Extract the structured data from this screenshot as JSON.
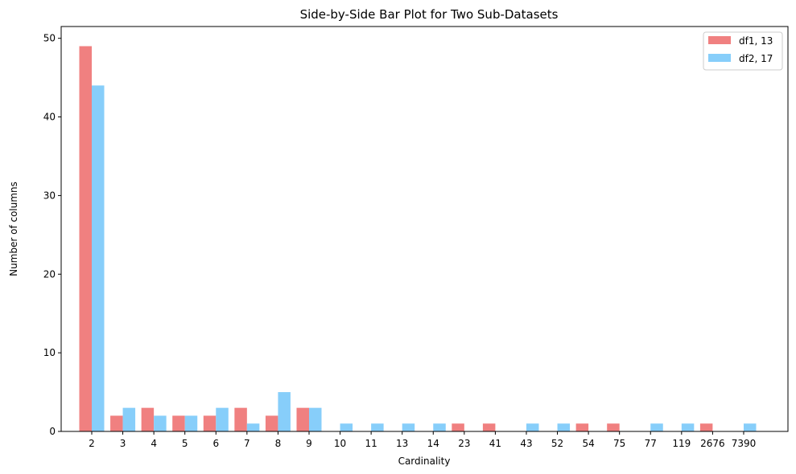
{
  "chart_data": {
    "type": "bar",
    "title": "Side-by-Side Bar Plot for Two Sub-Datasets",
    "xlabel": "Cardinality",
    "ylabel": "Number of columns",
    "ylim": [
      0,
      51.5
    ],
    "yticks": [
      0,
      10,
      20,
      30,
      40,
      50
    ],
    "legend_position": "top-right",
    "grid": false,
    "categories": [
      "2",
      "3",
      "4",
      "5",
      "6",
      "7",
      "8",
      "9",
      "10",
      "11",
      "13",
      "14",
      "23",
      "41",
      "43",
      "52",
      "54",
      "75",
      "77",
      "119",
      "2676",
      "7390"
    ],
    "series": [
      {
        "name": "df1, 13",
        "color": "#f08080",
        "values": [
          49,
          2,
          3,
          2,
          2,
          3,
          2,
          3,
          0,
          0,
          0,
          0,
          1,
          1,
          0,
          0,
          1,
          1,
          0,
          0,
          1,
          0
        ]
      },
      {
        "name": "df2, 17",
        "color": "#87cefa",
        "values": [
          44,
          3,
          2,
          2,
          3,
          1,
          5,
          3,
          1,
          1,
          1,
          1,
          0,
          0,
          1,
          1,
          0,
          0,
          1,
          1,
          0,
          1
        ]
      }
    ]
  }
}
